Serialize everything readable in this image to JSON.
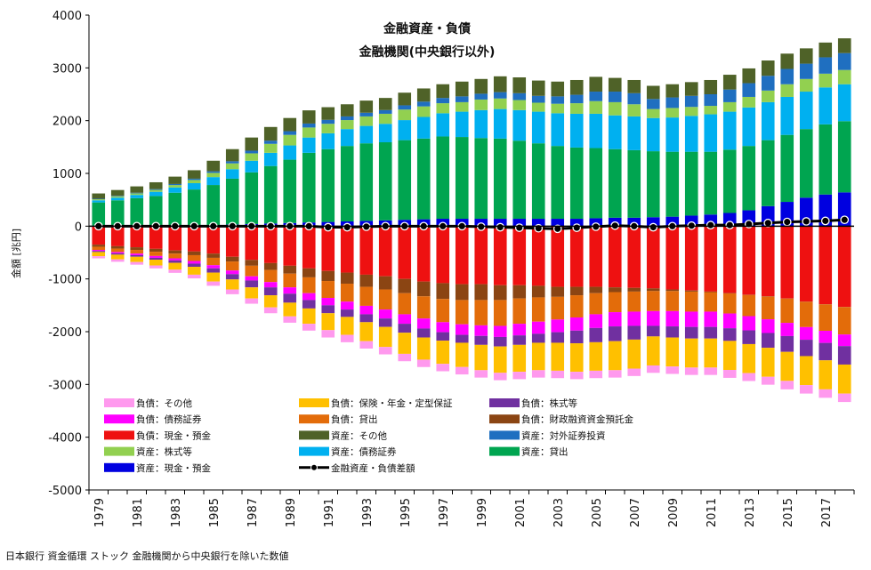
{
  "chart_data": {
    "type": "bar",
    "stacked": true,
    "title": "金融資産・負債",
    "subtitle": "金融機関(中央銀行以外)",
    "ylabel": "金額 [兆円]",
    "xlabel": "",
    "ylim": [
      -5000,
      4000
    ],
    "yticks": [
      4000,
      3000,
      2000,
      1000,
      0,
      -1000,
      -2000,
      -3000,
      -4000,
      -5000
    ],
    "grid": false,
    "legend_position": "bottom-left",
    "categories": [
      "1979",
      "1980",
      "1981",
      "1982",
      "1983",
      "1984",
      "1985",
      "1986",
      "1987",
      "1988",
      "1989",
      "1990",
      "1991",
      "1992",
      "1993",
      "1994",
      "1995",
      "1996",
      "1997",
      "1998",
      "1999",
      "2000",
      "2001",
      "2002",
      "2003",
      "2004",
      "2005",
      "2006",
      "2007",
      "2008",
      "2009",
      "2010",
      "2011",
      "2012",
      "2013",
      "2014",
      "2015",
      "2016",
      "2017",
      "2018"
    ],
    "tick_labels": [
      "1979",
      "1981",
      "1983",
      "1985",
      "1987",
      "1989",
      "1991",
      "1993",
      "1995",
      "1997",
      "1999",
      "2001",
      "2003",
      "2005",
      "2007",
      "2009",
      "2011",
      "2013",
      "2015",
      "2017"
    ],
    "asset_series": [
      {
        "name": "資産：現金・預金",
        "color": "#0000e0",
        "values": [
          10,
          10,
          12,
          12,
          14,
          15,
          20,
          30,
          40,
          50,
          60,
          70,
          80,
          90,
          100,
          110,
          120,
          130,
          140,
          140,
          140,
          140,
          140,
          140,
          140,
          140,
          150,
          160,
          160,
          170,
          180,
          200,
          220,
          250,
          300,
          380,
          460,
          540,
          600,
          640
        ]
      },
      {
        "name": "資産：貸出",
        "color": "#00a550",
        "values": [
          440,
          480,
          520,
          560,
          620,
          680,
          760,
          870,
          980,
          1090,
          1200,
          1320,
          1380,
          1430,
          1470,
          1480,
          1510,
          1530,
          1560,
          1550,
          1530,
          1520,
          1480,
          1430,
          1380,
          1350,
          1330,
          1300,
          1280,
          1250,
          1230,
          1210,
          1190,
          1200,
          1220,
          1250,
          1270,
          1300,
          1330,
          1350
        ]
      },
      {
        "name": "資産：債務証券",
        "color": "#00b0f0",
        "values": [
          40,
          50,
          60,
          80,
          100,
          120,
          150,
          180,
          220,
          250,
          270,
          290,
          300,
          320,
          330,
          350,
          380,
          410,
          440,
          480,
          530,
          560,
          580,
          600,
          620,
          640,
          650,
          640,
          640,
          630,
          650,
          680,
          710,
          720,
          730,
          720,
          720,
          710,
          700,
          700
        ]
      },
      {
        "name": "資産：株式等",
        "color": "#92d050",
        "values": [
          20,
          25,
          30,
          35,
          45,
          60,
          80,
          110,
          140,
          170,
          200,
          190,
          180,
          170,
          180,
          190,
          200,
          200,
          190,
          180,
          200,
          200,
          190,
          170,
          180,
          200,
          240,
          250,
          230,
          170,
          180,
          170,
          160,
          180,
          200,
          220,
          240,
          240,
          260,
          270
        ]
      },
      {
        "name": "資産：対外証券投資",
        "color": "#1f6fc0",
        "values": [
          10,
          10,
          12,
          15,
          20,
          25,
          30,
          40,
          50,
          60,
          70,
          75,
          75,
          70,
          70,
          70,
          80,
          90,
          100,
          110,
          110,
          120,
          130,
          130,
          140,
          160,
          180,
          200,
          210,
          190,
          200,
          210,
          220,
          240,
          260,
          280,
          290,
          290,
          310,
          320
        ]
      },
      {
        "name": "資産：その他",
        "color": "#4f6228",
        "values": [
          100,
          110,
          120,
          130,
          140,
          160,
          200,
          230,
          250,
          260,
          250,
          250,
          240,
          230,
          230,
          230,
          240,
          250,
          260,
          280,
          280,
          300,
          300,
          290,
          280,
          280,
          280,
          260,
          250,
          250,
          250,
          260,
          270,
          280,
          280,
          290,
          290,
          290,
          280,
          280
        ]
      }
    ],
    "liability_series": [
      {
        "name": "負債：現金・預金",
        "color": "#ee1111",
        "values": [
          -350,
          -380,
          -400,
          -430,
          -460,
          -480,
          -520,
          -580,
          -640,
          -700,
          -750,
          -800,
          -850,
          -880,
          -920,
          -950,
          -1000,
          -1050,
          -1080,
          -1100,
          -1100,
          -1120,
          -1120,
          -1130,
          -1150,
          -1150,
          -1150,
          -1160,
          -1170,
          -1180,
          -1200,
          -1220,
          -1240,
          -1270,
          -1300,
          -1330,
          -1370,
          -1430,
          -1480,
          -1530
        ]
      },
      {
        "name": "負債：財政融資資金預託金",
        "color": "#8b4513",
        "values": [
          -40,
          -45,
          -50,
          -55,
          -60,
          -70,
          -80,
          -90,
          -110,
          -130,
          -150,
          -170,
          -190,
          -210,
          -230,
          -250,
          -270,
          -280,
          -300,
          -300,
          -300,
          -280,
          -250,
          -220,
          -190,
          -160,
          -120,
          -90,
          -70,
          -50,
          -30,
          -20,
          -10,
          -5,
          -5,
          -5,
          -3,
          -3,
          -3,
          -3
        ]
      },
      {
        "name": "負債：貸出",
        "color": "#e36c0a",
        "values": [
          -60,
          -65,
          -70,
          -80,
          -90,
          -110,
          -140,
          -170,
          -200,
          -230,
          -260,
          -300,
          -320,
          -340,
          -360,
          -380,
          -400,
          -420,
          -440,
          -460,
          -480,
          -490,
          -480,
          -460,
          -430,
          -420,
          -400,
          -380,
          -380,
          -380,
          -380,
          -380,
          -370,
          -380,
          -400,
          -430,
          -460,
          -480,
          -500,
          -520
        ]
      },
      {
        "name": "負債：債務証券",
        "color": "#ff00ff",
        "values": [
          -20,
          -25,
          -30,
          -35,
          -40,
          -50,
          -60,
          -70,
          -80,
          -100,
          -120,
          -130,
          -140,
          -150,
          -160,
          -170,
          -180,
          -190,
          -190,
          -200,
          -200,
          -210,
          -220,
          -230,
          -240,
          -250,
          -260,
          -270,
          -270,
          -280,
          -290,
          -290,
          -290,
          -280,
          -270,
          -260,
          -250,
          -240,
          -230,
          -220
        ]
      },
      {
        "name": "負債：株式等",
        "color": "#7030a0",
        "values": [
          -20,
          -25,
          -30,
          -35,
          -45,
          -60,
          -80,
          -100,
          -130,
          -150,
          -170,
          -160,
          -150,
          -140,
          -150,
          -160,
          -170,
          -170,
          -160,
          -150,
          -170,
          -180,
          -180,
          -170,
          -200,
          -240,
          -270,
          -280,
          -260,
          -200,
          -210,
          -220,
          -220,
          -240,
          -260,
          -280,
          -300,
          -310,
          -330,
          -350
        ]
      },
      {
        "name": "負債：保険・年金・定型保証",
        "color": "#ffc000",
        "values": [
          -80,
          -90,
          -100,
          -110,
          -130,
          -150,
          -170,
          -190,
          -210,
          -230,
          -260,
          -290,
          -320,
          -340,
          -360,
          -380,
          -400,
          -420,
          -440,
          -460,
          -480,
          -500,
          -510,
          -520,
          -530,
          -540,
          -540,
          -550,
          -550,
          -550,
          -550,
          -550,
          -550,
          -550,
          -550,
          -550,
          -550,
          -550,
          -550,
          -550
        ]
      },
      {
        "name": "負債：その他",
        "color": "#ff99ee",
        "values": [
          -40,
          -45,
          -50,
          -55,
          -60,
          -70,
          -80,
          -90,
          -100,
          -110,
          -120,
          -130,
          -140,
          -140,
          -140,
          -140,
          -140,
          -140,
          -140,
          -140,
          -140,
          -140,
          -140,
          -140,
          -140,
          -140,
          -140,
          -140,
          -140,
          -140,
          -140,
          -140,
          -140,
          -150,
          -150,
          -150,
          -160,
          -160,
          -160,
          -160
        ]
      }
    ],
    "net_series": {
      "name": "金融資産・負債差額",
      "color": "#000000",
      "values": [
        0,
        0,
        0,
        0,
        0,
        0,
        0,
        0,
        0,
        0,
        0,
        0,
        -20,
        -20,
        -10,
        0,
        0,
        0,
        0,
        0,
        -10,
        -20,
        -30,
        -40,
        -50,
        -30,
        -10,
        10,
        0,
        -20,
        0,
        10,
        20,
        20,
        40,
        60,
        80,
        90,
        100,
        120
      ]
    },
    "legend": [
      "負債：その他",
      "負債：保険・年金・定型保証",
      "負債：株式等",
      "負債：債務証券",
      "負債：貸出",
      "負債：財政融資資金預託金",
      "負債：現金・預金",
      "資産：その他",
      "資産：対外証券投資",
      "資産：株式等",
      "資産：債務証券",
      "資産：貸出",
      "資産：現金・預金",
      "金融資産・負債差額"
    ],
    "legend_colors": [
      "#ff99ee",
      "#ffc000",
      "#7030a0",
      "#ff00ff",
      "#e36c0a",
      "#8b4513",
      "#ee1111",
      "#4f6228",
      "#1f6fc0",
      "#92d050",
      "#00b0f0",
      "#00a550",
      "#0000e0",
      "#000000"
    ]
  },
  "source_note": "日本銀行 資金循環 ストック 金融機関から中央銀行を除いた数値"
}
